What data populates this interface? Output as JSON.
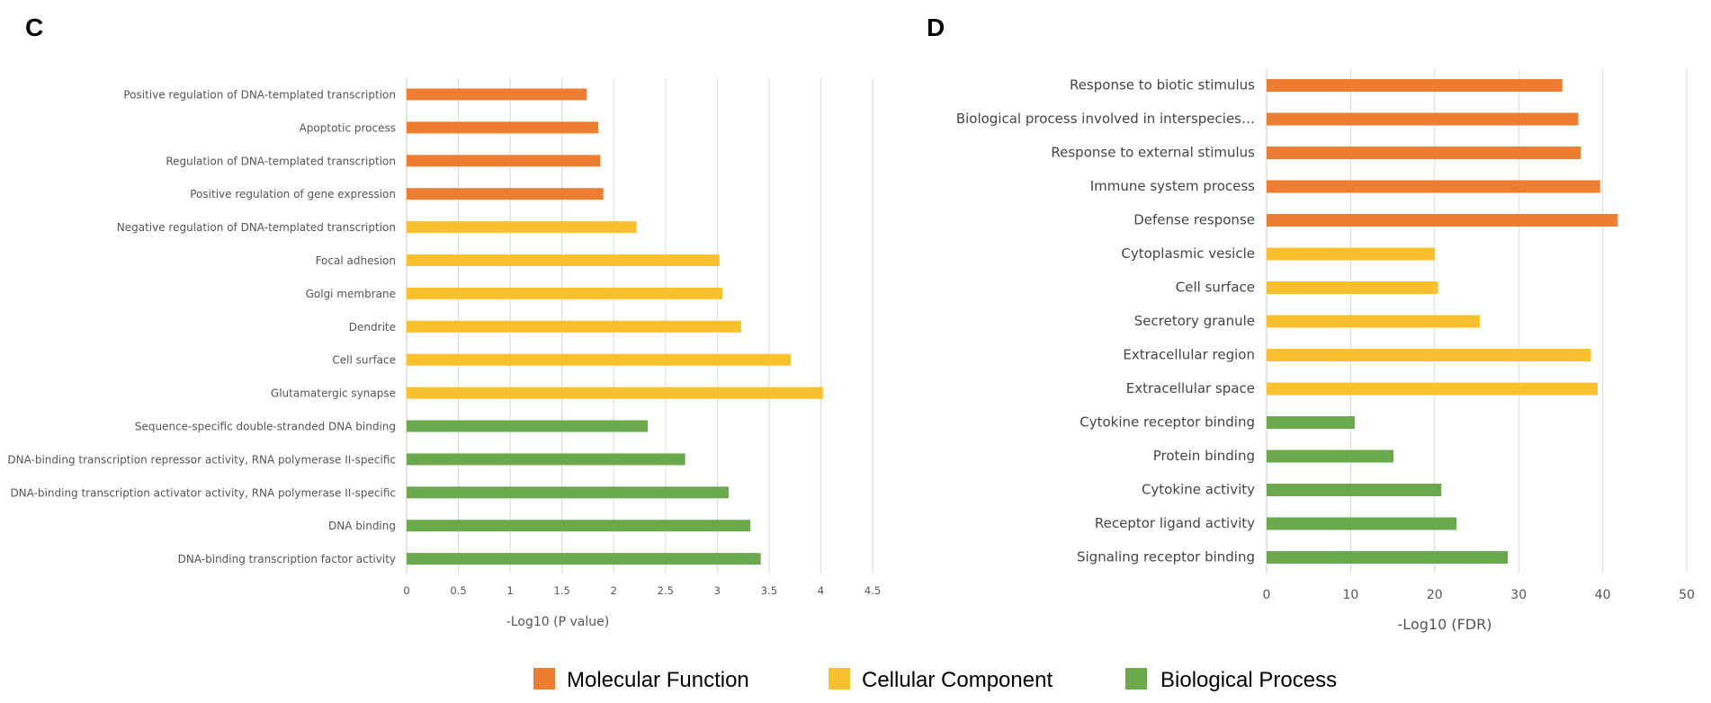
{
  "legend": [
    {
      "label": "Molecular Function",
      "color": "#ED7D31"
    },
    {
      "label": "Cellular Component",
      "color": "#FBC02D"
    },
    {
      "label": "Biological Process",
      "color": "#6AAA4D"
    }
  ],
  "chart_data": [
    {
      "panel": "C",
      "type": "bar",
      "orientation": "horizontal",
      "xlabel": "-Log10 (P value)",
      "xlim": [
        0,
        4.5
      ],
      "xticks": [
        0,
        0.5,
        1,
        1.5,
        2,
        2.5,
        3,
        3.5,
        4,
        4.5
      ],
      "xtick_labels": [
        "0",
        "0.5",
        "1",
        "1.5",
        "2",
        "2.5",
        "3",
        "3.5",
        "4",
        "4.5"
      ],
      "grid": "vertical",
      "categories": [
        "Positive regulation of DNA-templated transcription",
        "Apoptotic process",
        "Regulation of DNA-templated transcription",
        "Positive regulation of gene expression",
        "Negative regulation of DNA-templated transcription",
        "Focal adhesion",
        "Golgi membrane",
        "Dendrite",
        "Cell surface",
        "Glutamatergic synapse",
        "Sequence-specific double-stranded DNA binding",
        "DNA-binding transcription repressor activity, RNA polymerase II-specific",
        "DNA-binding transcription activator activity, RNA polymerase II-specific",
        "DNA binding",
        "DNA-binding transcription factor activity"
      ],
      "values": [
        1.74,
        1.85,
        1.87,
        1.9,
        2.22,
        3.02,
        3.05,
        3.23,
        3.71,
        4.02,
        2.33,
        2.69,
        3.11,
        3.32,
        3.42
      ],
      "groups": [
        0,
        0,
        0,
        0,
        1,
        1,
        1,
        1,
        1,
        1,
        2,
        2,
        2,
        2,
        2
      ]
    },
    {
      "panel": "D",
      "type": "bar",
      "orientation": "horizontal",
      "xlabel": "-Log10 (FDR)",
      "xlim": [
        0,
        50
      ],
      "xticks": [
        0,
        10,
        20,
        30,
        40,
        50
      ],
      "xtick_labels": [
        "0",
        "10",
        "20",
        "30",
        "40",
        "50"
      ],
      "grid": "vertical",
      "categories": [
        "Response to biotic stimulus",
        "Biological process involved in interspecies…",
        "Response to external stimulus",
        "Immune system process",
        "Defense response",
        "Cytoplasmic vesicle",
        "Cell surface",
        "Secretory granule",
        "Extracellular region",
        "Extracellular space",
        "Cytokine receptor binding",
        "Protein binding",
        "Cytokine activity",
        "Receptor ligand activity",
        "Signaling receptor binding"
      ],
      "values": [
        35.2,
        37.1,
        37.4,
        39.7,
        41.8,
        20.0,
        20.4,
        25.4,
        38.6,
        39.4,
        10.5,
        15.1,
        20.8,
        22.6,
        28.7
      ],
      "groups": [
        0,
        0,
        0,
        0,
        0,
        1,
        1,
        1,
        1,
        1,
        2,
        2,
        2,
        2,
        2
      ]
    }
  ]
}
